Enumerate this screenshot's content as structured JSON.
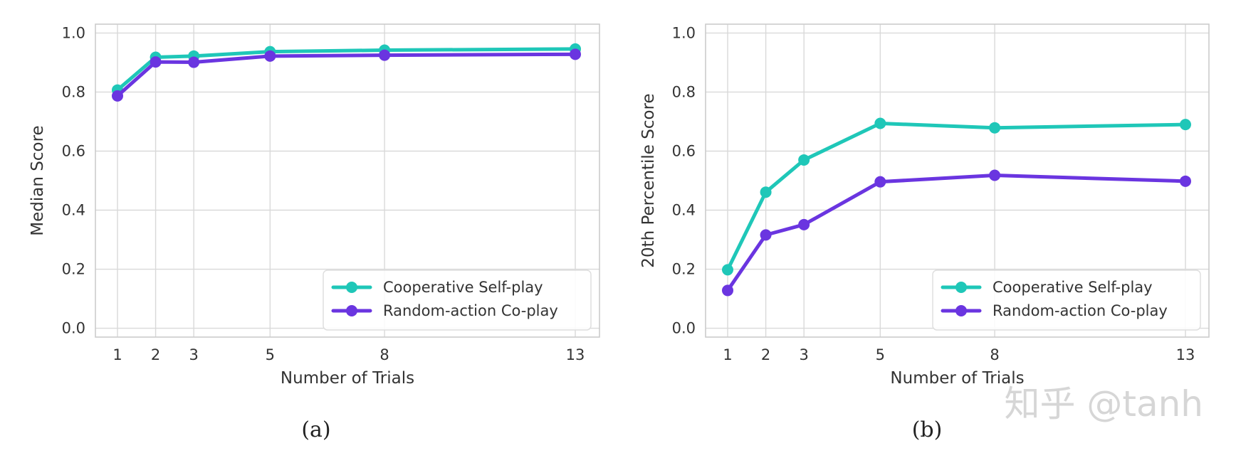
{
  "colors": {
    "cooperative": "#1fc7b8",
    "random": "#6a35e0",
    "grid": "#d9d9d9",
    "frame": "#cccccc"
  },
  "watermark": "知乎 @tanh",
  "chart_data": [
    {
      "type": "line",
      "caption": "(a)",
      "xlabel": "Number of Trials",
      "ylabel": "Median Score",
      "x": [
        1,
        2,
        3,
        5,
        8,
        13
      ],
      "x_tick_labels": [
        "1",
        "2",
        "3",
        "5",
        "8",
        "13"
      ],
      "y_ticks": [
        0.0,
        0.2,
        0.4,
        0.6,
        0.8,
        1.0
      ],
      "y_tick_labels": [
        "0.0",
        "0.2",
        "0.4",
        "0.6",
        "0.8",
        "1.0"
      ],
      "ylim": [
        -0.03,
        1.03
      ],
      "grid": true,
      "legend_position": "lower-right",
      "series": [
        {
          "name": "Cooperative Self-play",
          "values": [
            0.807,
            0.918,
            0.922,
            0.937,
            0.942,
            0.946
          ]
        },
        {
          "name": "Random-action Co-play",
          "values": [
            0.787,
            0.902,
            0.901,
            0.922,
            0.925,
            0.928
          ]
        }
      ]
    },
    {
      "type": "line",
      "caption": "(b)",
      "xlabel": "Number of Trials",
      "ylabel": "20th Percentile Score",
      "x": [
        1,
        2,
        3,
        5,
        8,
        13
      ],
      "x_tick_labels": [
        "1",
        "2",
        "3",
        "5",
        "8",
        "13"
      ],
      "y_ticks": [
        0.0,
        0.2,
        0.4,
        0.6,
        0.8,
        1.0
      ],
      "y_tick_labels": [
        "0.0",
        "0.2",
        "0.4",
        "0.6",
        "0.8",
        "1.0"
      ],
      "ylim": [
        -0.03,
        1.03
      ],
      "grid": true,
      "legend_position": "lower-right",
      "series": [
        {
          "name": "Cooperative Self-play",
          "values": [
            0.198,
            0.461,
            0.57,
            0.694,
            0.679,
            0.69
          ]
        },
        {
          "name": "Random-action Co-play",
          "values": [
            0.128,
            0.316,
            0.351,
            0.496,
            0.518,
            0.498
          ]
        }
      ]
    }
  ]
}
